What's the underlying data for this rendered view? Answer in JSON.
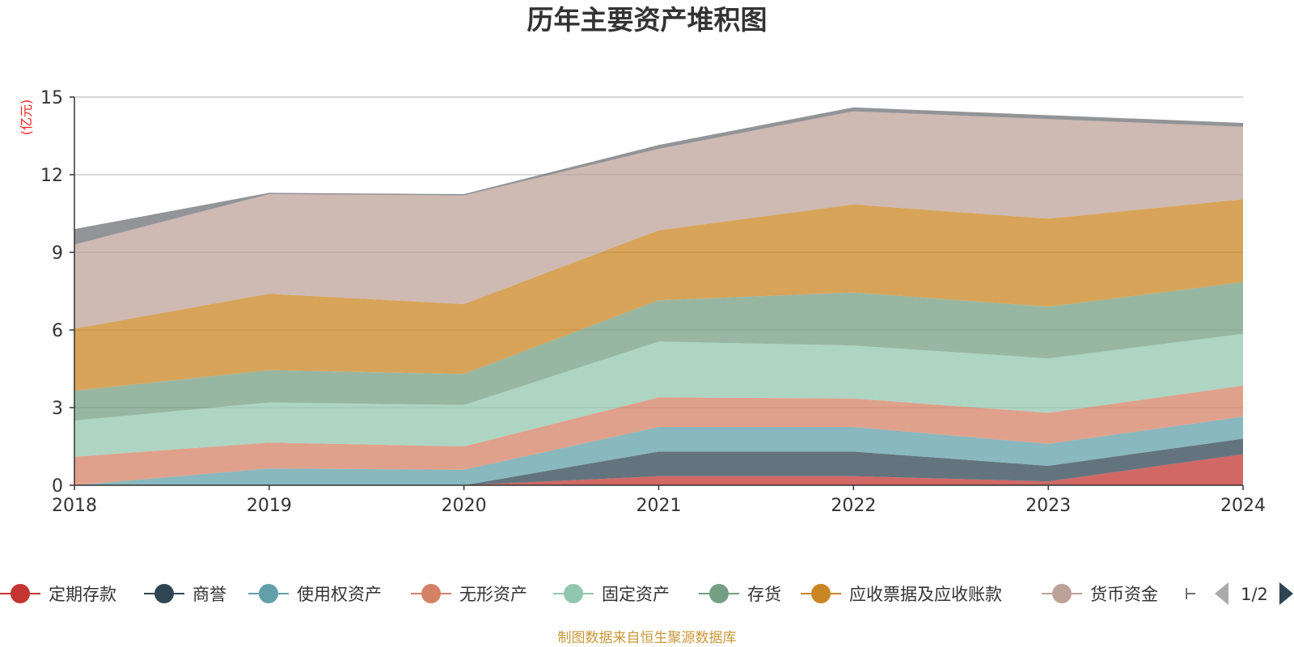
{
  "chart_data": {
    "type": "area",
    "stacked": true,
    "title": "历年主要资产堆积图",
    "ylabel": "(亿元)",
    "xlabel": "",
    "categories": [
      "2018",
      "2019",
      "2020",
      "2021",
      "2022",
      "2023",
      "2024"
    ],
    "yticks": [
      0,
      3,
      6,
      9,
      12,
      15
    ],
    "ylim": [
      0,
      15
    ],
    "grid": true,
    "legend_position": "bottom",
    "series": [
      {
        "name": "定期存款",
        "color": "#c23531",
        "values": [
          0,
          0,
          0,
          0.35,
          0.35,
          0.15,
          1.2
        ]
      },
      {
        "name": "商誉",
        "color": "#2f4554",
        "values": [
          0,
          0,
          0,
          0.95,
          0.95,
          0.6,
          0.6
        ]
      },
      {
        "name": "使用权资产",
        "color": "#61a0a8",
        "values": [
          0,
          0.65,
          0.6,
          0.95,
          0.95,
          0.85,
          0.85
        ]
      },
      {
        "name": "无形资产",
        "color": "#d48265",
        "values": [
          1.1,
          1.0,
          0.9,
          1.15,
          1.1,
          1.2,
          1.2
        ]
      },
      {
        "name": "固定资产",
        "color": "#91c7ae",
        "values": [
          1.4,
          1.55,
          1.6,
          2.15,
          2.05,
          2.1,
          2.0
        ]
      },
      {
        "name": "存货",
        "color": "#749f83",
        "values": [
          1.15,
          1.25,
          1.2,
          1.6,
          2.05,
          2.0,
          2.0
        ]
      },
      {
        "name": "应收票据及应收账款",
        "color": "#ca8622",
        "values": [
          2.4,
          2.95,
          2.7,
          2.7,
          3.4,
          3.4,
          3.2
        ]
      },
      {
        "name": "货币资金",
        "color": "#bda29a",
        "values": [
          3.25,
          3.85,
          4.2,
          3.15,
          3.6,
          3.85,
          2.8
        ]
      },
      {
        "name": "",
        "color": "#6e7074",
        "values": [
          0.6,
          0.05,
          0.05,
          0.15,
          0.15,
          0.15,
          0.15
        ]
      }
    ]
  },
  "legend": {
    "items": [
      "定期存款",
      "商誉",
      "使用权资产",
      "无形资产",
      "固定资产",
      "存货",
      "应收票据及应收账款",
      "货币资金"
    ],
    "page_indicator": "1/2"
  },
  "footer": "制图数据来自恒生聚源数据库"
}
